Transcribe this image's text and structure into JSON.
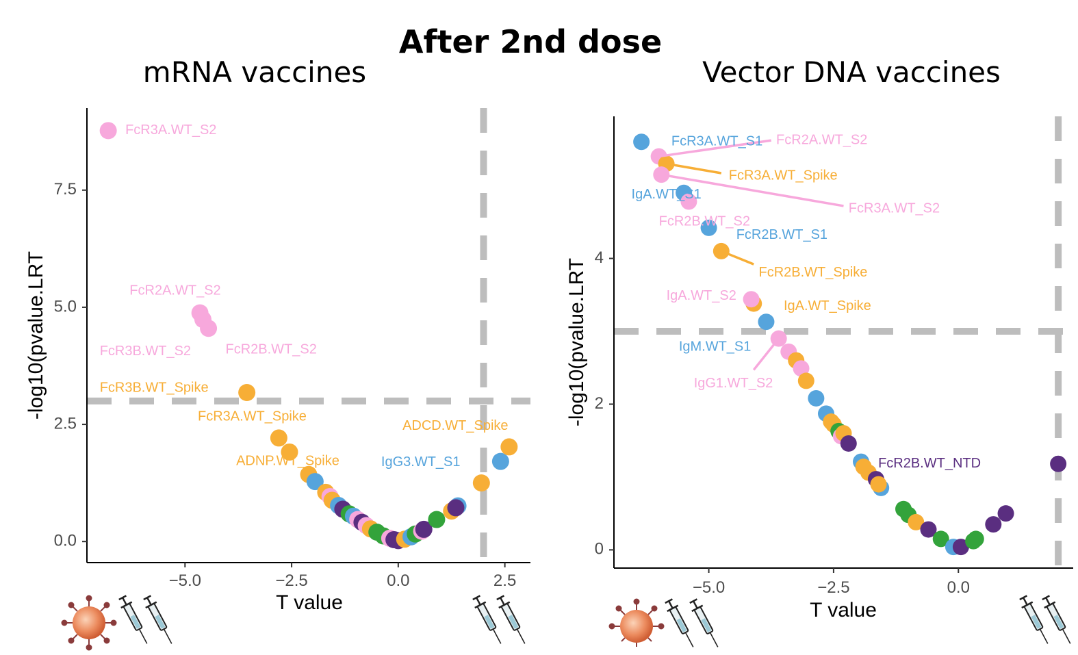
{
  "figure_title": "After 2nd dose",
  "colors": {
    "pink": "#f7a8dc",
    "blue": "#56a4dc",
    "orange": "#f7ae36",
    "green": "#33a33b",
    "purple": "#5a2e80",
    "threshold": "#bdbdbd",
    "tick": "#4d4d4d"
  },
  "icons": [
    "virus-icon",
    "syringe-icon",
    "syringe-icon"
  ],
  "chart_data": [
    {
      "type": "scatter",
      "title": "mRNA vaccines",
      "xlabel": "T value",
      "ylabel": "-log10(pvalue.LRT",
      "xlim": [
        -7.3,
        3.1
      ],
      "ylim": [
        -0.45,
        9.25
      ],
      "xticks": [
        -5.0,
        -2.5,
        0.0,
        2.5
      ],
      "xtick_labels": [
        "−5.0",
        "−2.5",
        "0.0",
        "2.5"
      ],
      "yticks": [
        0.0,
        2.5,
        5.0,
        7.5
      ],
      "ytick_labels": [
        "0.0",
        "2.5",
        "5.0",
        "7.5"
      ],
      "hline": 3.0,
      "vline": 2.0,
      "points": [
        {
          "x": -6.8,
          "y": 8.77,
          "c": "pink"
        },
        {
          "x": -4.65,
          "y": 4.88,
          "c": "pink"
        },
        {
          "x": -4.58,
          "y": 4.74,
          "c": "pink"
        },
        {
          "x": -4.45,
          "y": 4.55,
          "c": "pink"
        },
        {
          "x": -3.55,
          "y": 3.18,
          "c": "orange"
        },
        {
          "x": -2.8,
          "y": 2.21,
          "c": "orange"
        },
        {
          "x": -2.55,
          "y": 1.91,
          "c": "orange"
        },
        {
          "x": -2.1,
          "y": 1.43,
          "c": "orange"
        },
        {
          "x": -1.95,
          "y": 1.28,
          "c": "blue"
        },
        {
          "x": -1.7,
          "y": 1.05,
          "c": "orange"
        },
        {
          "x": -1.6,
          "y": 0.96,
          "c": "pink"
        },
        {
          "x": -1.55,
          "y": 0.88,
          "c": "orange"
        },
        {
          "x": -1.4,
          "y": 0.77,
          "c": "blue"
        },
        {
          "x": -1.3,
          "y": 0.69,
          "c": "purple"
        },
        {
          "x": -1.15,
          "y": 0.59,
          "c": "green"
        },
        {
          "x": -1.05,
          "y": 0.54,
          "c": "blue"
        },
        {
          "x": -0.95,
          "y": 0.47,
          "c": "pink"
        },
        {
          "x": -0.85,
          "y": 0.41,
          "c": "purple"
        },
        {
          "x": -0.75,
          "y": 0.34,
          "c": "pink"
        },
        {
          "x": -0.65,
          "y": 0.27,
          "c": "orange"
        },
        {
          "x": -0.5,
          "y": 0.2,
          "c": "green"
        },
        {
          "x": -0.35,
          "y": 0.12,
          "c": "green"
        },
        {
          "x": -0.2,
          "y": 0.07,
          "c": "pink"
        },
        {
          "x": -0.1,
          "y": 0.04,
          "c": "purple"
        },
        {
          "x": 0.0,
          "y": 0.02,
          "c": "purple"
        },
        {
          "x": 0.15,
          "y": 0.05,
          "c": "orange"
        },
        {
          "x": 0.3,
          "y": 0.1,
          "c": "blue"
        },
        {
          "x": 0.4,
          "y": 0.16,
          "c": "green"
        },
        {
          "x": 0.55,
          "y": 0.22,
          "c": "pink"
        },
        {
          "x": 0.6,
          "y": 0.26,
          "c": "purple"
        },
        {
          "x": 0.9,
          "y": 0.47,
          "c": "green"
        },
        {
          "x": 1.25,
          "y": 0.65,
          "c": "orange"
        },
        {
          "x": 1.4,
          "y": 0.76,
          "c": "blue"
        },
        {
          "x": 1.35,
          "y": 0.72,
          "c": "purple"
        },
        {
          "x": 1.95,
          "y": 1.25,
          "c": "orange"
        },
        {
          "x": 2.4,
          "y": 1.71,
          "c": "blue"
        },
        {
          "x": 2.6,
          "y": 2.02,
          "c": "orange"
        }
      ],
      "labels": [
        {
          "text": "FcR3A.WT_S2",
          "x": -6.4,
          "y": 8.77,
          "c": "pink"
        },
        {
          "text": "FcR2A.WT_S2",
          "x": -6.3,
          "y": 5.35,
          "c": "pink"
        },
        {
          "text": "FcR3B.WT_S2",
          "x": -7.0,
          "y": 4.05,
          "c": "pink"
        },
        {
          "text": "FcR2B.WT_S2",
          "x": -4.05,
          "y": 4.09,
          "c": "pink"
        },
        {
          "text": "FcR3B.WT_Spike",
          "x": -7.0,
          "y": 3.27,
          "c": "orange"
        },
        {
          "text": "FcR3A.WT_Spike",
          "x": -4.7,
          "y": 2.66,
          "c": "orange"
        },
        {
          "text": "ADCD.WT_Spike",
          "x": 0.1,
          "y": 2.46,
          "c": "orange"
        },
        {
          "text": "ADNP.WT_Spike",
          "x": -3.8,
          "y": 1.71,
          "c": "orange"
        },
        {
          "text": "IgG3.WT_S1",
          "x": -0.4,
          "y": 1.69,
          "c": "blue"
        }
      ],
      "segments": []
    },
    {
      "type": "scatter",
      "title": "Vector DNA vaccines",
      "xlabel": "T value",
      "ylabel": "-log10(pvalue.LRT",
      "xlim": [
        -6.9,
        2.3
      ],
      "ylim": [
        -0.25,
        5.95
      ],
      "xticks": [
        -5.0,
        -2.5,
        0.0
      ],
      "xtick_labels": [
        "−5.0",
        "−2.5",
        "0.0"
      ],
      "yticks": [
        0,
        2,
        4
      ],
      "ytick_labels": [
        "0",
        "2",
        "4"
      ],
      "hline": 3.0,
      "vline": 2.0,
      "points": [
        {
          "x": -6.35,
          "y": 5.6,
          "c": "blue"
        },
        {
          "x": -6.0,
          "y": 5.4,
          "c": "pink"
        },
        {
          "x": -5.85,
          "y": 5.3,
          "c": "orange"
        },
        {
          "x": -5.95,
          "y": 5.15,
          "c": "pink"
        },
        {
          "x": -5.5,
          "y": 4.9,
          "c": "blue"
        },
        {
          "x": -5.4,
          "y": 4.78,
          "c": "pink"
        },
        {
          "x": -5.0,
          "y": 4.42,
          "c": "blue"
        },
        {
          "x": -4.75,
          "y": 4.1,
          "c": "orange"
        },
        {
          "x": -4.1,
          "y": 3.38,
          "c": "orange"
        },
        {
          "x": -4.15,
          "y": 3.44,
          "c": "pink"
        },
        {
          "x": -3.85,
          "y": 3.13,
          "c": "blue"
        },
        {
          "x": -3.6,
          "y": 2.9,
          "c": "pink"
        },
        {
          "x": -3.4,
          "y": 2.72,
          "c": "pink"
        },
        {
          "x": -3.25,
          "y": 2.6,
          "c": "orange"
        },
        {
          "x": -3.15,
          "y": 2.49,
          "c": "pink"
        },
        {
          "x": -3.05,
          "y": 2.32,
          "c": "orange"
        },
        {
          "x": -2.85,
          "y": 2.08,
          "c": "blue"
        },
        {
          "x": -2.65,
          "y": 1.87,
          "c": "blue"
        },
        {
          "x": -2.55,
          "y": 1.76,
          "c": "orange"
        },
        {
          "x": -2.5,
          "y": 1.72,
          "c": "orange"
        },
        {
          "x": -2.4,
          "y": 1.63,
          "c": "green"
        },
        {
          "x": -2.35,
          "y": 1.56,
          "c": "pink"
        },
        {
          "x": -2.3,
          "y": 1.6,
          "c": "orange"
        },
        {
          "x": -2.2,
          "y": 1.46,
          "c": "purple"
        },
        {
          "x": -1.95,
          "y": 1.21,
          "c": "blue"
        },
        {
          "x": -1.9,
          "y": 1.14,
          "c": "orange"
        },
        {
          "x": -1.8,
          "y": 1.06,
          "c": "orange"
        },
        {
          "x": -1.65,
          "y": 0.97,
          "c": "purple"
        },
        {
          "x": -1.55,
          "y": 0.85,
          "c": "blue"
        },
        {
          "x": -1.6,
          "y": 0.9,
          "c": "orange"
        },
        {
          "x": -1.1,
          "y": 0.56,
          "c": "green"
        },
        {
          "x": -1.0,
          "y": 0.48,
          "c": "green"
        },
        {
          "x": -0.85,
          "y": 0.38,
          "c": "orange"
        },
        {
          "x": -0.6,
          "y": 0.28,
          "c": "purple"
        },
        {
          "x": -0.35,
          "y": 0.15,
          "c": "green"
        },
        {
          "x": -0.1,
          "y": 0.04,
          "c": "blue"
        },
        {
          "x": 0.05,
          "y": 0.04,
          "c": "purple"
        },
        {
          "x": 0.3,
          "y": 0.12,
          "c": "green"
        },
        {
          "x": 0.35,
          "y": 0.15,
          "c": "green"
        },
        {
          "x": 0.7,
          "y": 0.35,
          "c": "purple"
        },
        {
          "x": 0.95,
          "y": 0.5,
          "c": "purple"
        },
        {
          "x": 2.0,
          "y": 1.18,
          "c": "purple"
        }
      ],
      "labels": [
        {
          "text": "FcR3A.WT_S1",
          "x": -5.75,
          "y": 5.6,
          "c": "blue"
        },
        {
          "text": "FcR2A.WT_S2",
          "x": -3.65,
          "y": 5.62,
          "c": "pink"
        },
        {
          "text": "FcR3A.WT_Spike",
          "x": -4.6,
          "y": 5.13,
          "c": "orange"
        },
        {
          "text": "IgA.WT_S1",
          "x": -6.55,
          "y": 4.87,
          "c": "blue"
        },
        {
          "text": "FcR3A.WT_S2",
          "x": -2.2,
          "y": 4.68,
          "c": "pink"
        },
        {
          "text": "FcR2B.WT_S2",
          "x": -6.0,
          "y": 4.5,
          "c": "pink"
        },
        {
          "text": "FcR2B.WT_S1",
          "x": -4.45,
          "y": 4.32,
          "c": "blue"
        },
        {
          "text": "FcR2B.WT_Spike",
          "x": -4.0,
          "y": 3.8,
          "c": "orange"
        },
        {
          "text": "IgA.WT_S2",
          "x": -5.85,
          "y": 3.48,
          "c": "pink"
        },
        {
          "text": "IgA.WT_Spike",
          "x": -3.5,
          "y": 3.34,
          "c": "orange"
        },
        {
          "text": "IgM.WT_S1",
          "x": -5.6,
          "y": 2.78,
          "c": "blue"
        },
        {
          "text": "IgG1.WT_S2",
          "x": -5.3,
          "y": 2.28,
          "c": "pink"
        },
        {
          "text": "FcR2B.WT_NTD",
          "x": 0.45,
          "y": 1.18,
          "c": "purple",
          "anchor": "end"
        }
      ],
      "segments": [
        {
          "x1": -6.0,
          "y1": 5.4,
          "x2": -3.75,
          "y2": 5.62,
          "c": "pink"
        },
        {
          "x1": -5.85,
          "y1": 5.3,
          "x2": -4.75,
          "y2": 5.17,
          "c": "orange"
        },
        {
          "x1": -5.95,
          "y1": 5.15,
          "x2": -2.3,
          "y2": 4.72,
          "c": "pink"
        },
        {
          "x1": -4.75,
          "y1": 4.1,
          "x2": -4.1,
          "y2": 3.92,
          "c": "orange"
        },
        {
          "x1": -3.6,
          "y1": 2.9,
          "x2": -4.1,
          "y2": 2.47,
          "c": "pink"
        }
      ]
    }
  ]
}
